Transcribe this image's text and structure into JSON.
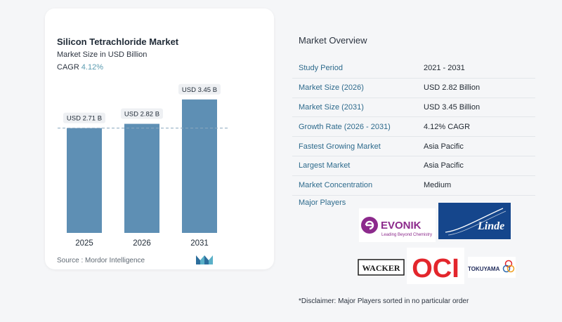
{
  "chart_data": {
    "type": "bar",
    "title": "Silicon Tetrachloride Market",
    "subtitle": "Market Size in USD Billion",
    "cagr_label": "CAGR",
    "cagr_value": "4.12%",
    "categories": [
      "2025",
      "2026",
      "2031"
    ],
    "values": [
      2.71,
      2.82,
      3.45
    ],
    "data_labels": [
      "USD 2.71 B",
      "USD 2.82 B",
      "USD 3.45 B"
    ],
    "ylim": [
      0,
      3.7
    ],
    "reference_line": 2.71,
    "bar_color": "#5e8fb4",
    "grid": false,
    "legend": "none"
  },
  "source": "Source :  Mordor Intelligence",
  "overview": {
    "title": "Market Overview",
    "rows": [
      {
        "label": "Study Period",
        "value": "2021 - 2031"
      },
      {
        "label": "Market Size (2026)",
        "value": "USD 2.82 Billion"
      },
      {
        "label": "Market Size (2031)",
        "value": "USD 3.45 Billion"
      },
      {
        "label": "Growth Rate (2026 - 2031)",
        "value": "4.12% CAGR"
      },
      {
        "label": "Fastest Growing Market",
        "value": "Asia Pacific"
      },
      {
        "label": "Largest Market",
        "value": "Asia Pacific"
      },
      {
        "label": "Market Concentration",
        "value": "Medium"
      }
    ]
  },
  "players": {
    "title": "Major Players",
    "logos": [
      {
        "name": "EVONIK",
        "tagline": "Leading Beyond Chemistry",
        "color": "#8c2a8c"
      },
      {
        "name": "Linde",
        "color": "#15468c"
      },
      {
        "name": "WACKER",
        "color": "#1a1a1a"
      },
      {
        "name": "OCI",
        "color": "#e3262c"
      },
      {
        "name": "TOKUYAMA",
        "color": "#1f2a5a"
      }
    ]
  },
  "disclaimer": "*Disclaimer: Major Players sorted in no particular order"
}
